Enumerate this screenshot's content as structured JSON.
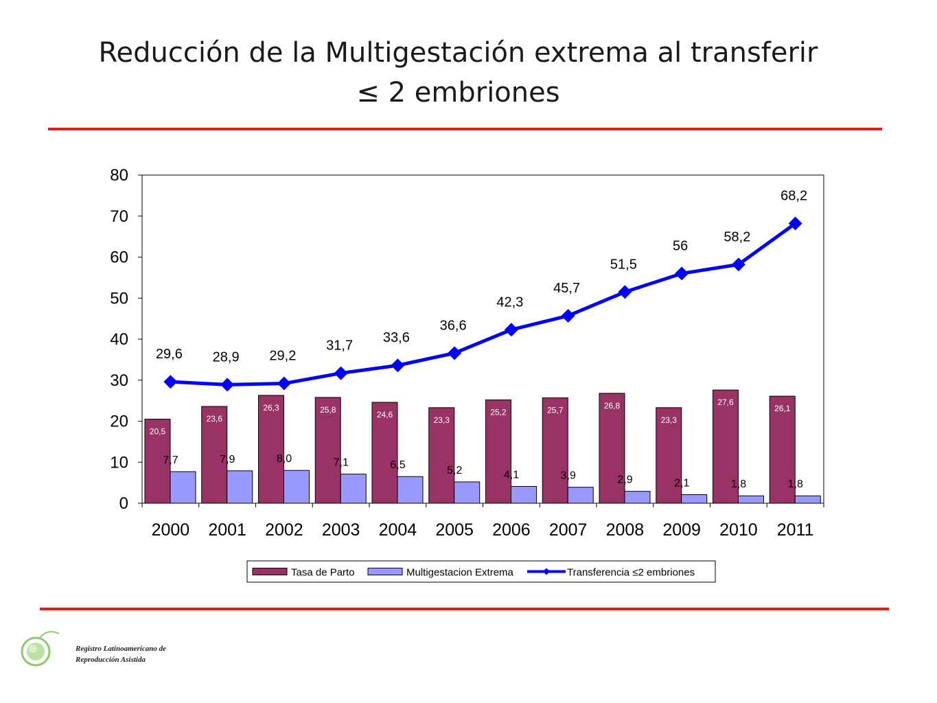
{
  "header": {
    "title_line1": "Reducción de la Multigestación extrema al transferir",
    "title_line2": "≤ 2 embriones"
  },
  "chart_data": {
    "type": "bar",
    "categories": [
      "2000",
      "2001",
      "2002",
      "2003",
      "2004",
      "2005",
      "2006",
      "2007",
      "2008",
      "2009",
      "2010",
      "2011"
    ],
    "ylim": [
      0,
      80
    ],
    "yticks": [
      0,
      10,
      20,
      30,
      40,
      50,
      60,
      70,
      80
    ],
    "grid": false,
    "legend_position": "bottom",
    "series": [
      {
        "name": "Tasa de Parto",
        "type": "bar",
        "color": "#993366",
        "values": [
          20.5,
          23.6,
          26.3,
          25.8,
          24.6,
          23.3,
          25.2,
          25.7,
          26.8,
          23.3,
          27.6,
          26.1
        ],
        "labels": [
          "20,5",
          "23,6",
          "26,3",
          "25,8",
          "24,6",
          "23,3",
          "25,2",
          "25,7",
          "26,8",
          "23,3",
          "27,6",
          "26,1"
        ]
      },
      {
        "name": "Multigestacion Extrema",
        "type": "bar",
        "color": "#9999ff",
        "values": [
          7.7,
          7.9,
          8.0,
          7.1,
          6.5,
          5.2,
          4.1,
          3.9,
          2.9,
          2.1,
          1.8,
          1.8
        ],
        "labels": [
          "7,7",
          "7,9",
          "8,0",
          "7,1",
          "6,5",
          "5,2",
          "4,1",
          "3,9",
          "2,9",
          "2,1",
          "1,8",
          "1,8"
        ]
      },
      {
        "name": "Transferencia ≤2 embriones",
        "type": "line",
        "color": "#0000ff",
        "values": [
          29.6,
          28.9,
          29.2,
          31.7,
          33.6,
          36.6,
          42.3,
          45.7,
          51.5,
          56,
          58.2,
          68.2
        ],
        "labels": [
          "29,6",
          "28,9",
          "29,2",
          "31,7",
          "33,6",
          "36,6",
          "42,3",
          "45,7",
          "51,5",
          "56",
          "58,2",
          "68,2"
        ]
      }
    ]
  },
  "logo": {
    "line1": "Registro Latinoamericano de",
    "line2": "Reproducción Asistida",
    "color": "#6abf4b"
  }
}
